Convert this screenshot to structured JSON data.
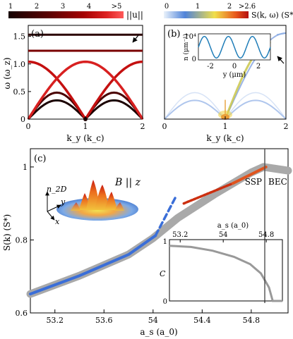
{
  "chart_data": [
    {
      "panel": "(a)",
      "type": "line",
      "colorbar": {
        "ticks": [
          "1",
          "2",
          "3",
          "4",
          ">5"
        ],
        "label": "||u||",
        "colors": [
          "#1a0000",
          "#5a0000",
          "#a00000",
          "#dc2020",
          "#ff6060"
        ]
      },
      "xlabel": "k_y (k_c)",
      "ylabel": "ω (ω_z)",
      "xlim": [
        0,
        2
      ],
      "ylim": [
        0,
        1.7
      ],
      "xticks": [
        "0",
        "1",
        "2"
      ],
      "yticks": [
        "0",
        "0.5",
        "1.0",
        "1.5"
      ],
      "series": [
        {
          "type": "dispersion",
          "x": [
            0,
            0.25,
            0.5,
            0.75,
            1.0,
            1.25,
            1.5,
            1.75,
            2.0
          ],
          "y": [
            0.0,
            0.22,
            0.34,
            0.22,
            0.0,
            0.22,
            0.34,
            0.22,
            0.0
          ]
        },
        {
          "type": "dispersion",
          "x": [
            0,
            0.25,
            0.5,
            0.75,
            1.0,
            1.25,
            1.5,
            1.75,
            2.0
          ],
          "y": [
            0.0,
            0.36,
            0.48,
            0.36,
            0.0,
            0.36,
            0.48,
            0.36,
            0.0
          ]
        },
        {
          "type": "crossing",
          "x": [
            0,
            0.5,
            1.0,
            1.5,
            2.0
          ],
          "y": [
            1.04,
            0.5,
            0.0,
            0.5,
            1.04
          ]
        },
        {
          "type": "crossing",
          "x": [
            0,
            0.5,
            1.0,
            1.5,
            2.0
          ],
          "y": [
            0.0,
            0.56,
            1.04,
            0.56,
            0.0
          ]
        },
        {
          "type": "flat",
          "x": [
            0,
            2
          ],
          "y": [
            1.24,
            1.24
          ]
        },
        {
          "type": "flat",
          "x": [
            0,
            2
          ],
          "y": [
            1.53,
            1.53
          ]
        }
      ]
    },
    {
      "panel": "(b)",
      "type": "heatmap",
      "colorbar": {
        "ticks": [
          "0",
          "1",
          "2",
          ">2.6"
        ],
        "label": "S(k, ω) (S*)",
        "colors": [
          "#e8f1fb",
          "#4a7fd6",
          "#f2e14a",
          "#e03a14"
        ]
      },
      "xlabel": "k_y (k_c)",
      "xlim": [
        0,
        2
      ],
      "xticks": [
        "0",
        "1",
        "2"
      ],
      "inset": {
        "type": "line",
        "xlabel": "y (μm)",
        "ylabel": "n (μm⁻¹)",
        "ytick_top": "10⁴",
        "ytick_bottom": "0",
        "xticks": [
          "-2",
          "0",
          "2"
        ],
        "x": [
          -3,
          -2.5,
          -2,
          -1.5,
          -1,
          -0.5,
          0,
          0.5,
          1,
          1.5,
          2,
          2.5,
          3
        ],
        "y": [
          0.5,
          0.95,
          0.5,
          0.05,
          0.5,
          0.95,
          0.5,
          0.05,
          0.5,
          0.95,
          0.5,
          0.05,
          0.5
        ]
      }
    },
    {
      "panel": "(c)",
      "type": "line",
      "xlabel": "a_s (a_0)",
      "ylabel": "S(k) (S*)",
      "xlim": [
        53.0,
        55.1
      ],
      "ylim": [
        0.6,
        1.05
      ],
      "xticks": [
        "53.2",
        "53.6",
        "54",
        "54.4",
        "54.8"
      ],
      "yticks": [
        "0.6",
        "0.8",
        "1"
      ],
      "regions": [
        "SSP",
        "BEC"
      ],
      "illustration_text": [
        "n_2D",
        "B || z",
        "y",
        "x"
      ],
      "series": [
        {
          "name": "thick gray",
          "color": "#a9a9a9",
          "x": [
            53.0,
            53.4,
            53.8,
            54.0,
            54.2,
            54.5,
            54.8,
            54.9,
            55.1
          ],
          "y": [
            0.652,
            0.702,
            0.76,
            0.805,
            0.86,
            0.925,
            0.985,
            1.0,
            0.99
          ]
        },
        {
          "name": "blue",
          "color": "#3a6ed8",
          "x": [
            53.0,
            53.4,
            53.8,
            54.02
          ],
          "y": [
            0.652,
            0.702,
            0.76,
            0.812
          ]
        },
        {
          "name": "blue dashed",
          "color": "#3a6ed8",
          "dashed": true,
          "x": [
            54.02,
            54.18
          ],
          "y": [
            0.812,
            0.915
          ]
        },
        {
          "name": "red dotted",
          "color": "#cc2f10",
          "dotted": true,
          "x": [
            54.25,
            54.65
          ],
          "y": [
            0.9,
            0.955
          ]
        },
        {
          "name": "red",
          "color": "#e0541e",
          "x": [
            54.65,
            54.92
          ],
          "y": [
            0.955,
            1.0
          ]
        }
      ],
      "inset": {
        "xlabel": "a_s (a_0)",
        "ylabel": "C",
        "xticks": [
          "53.2",
          "54",
          "54.8"
        ],
        "yticks": [
          "0",
          "1"
        ],
        "x": [
          53.0,
          53.4,
          53.8,
          54.2,
          54.5,
          54.7,
          54.85,
          54.92,
          54.95,
          55.1
        ],
        "y": [
          0.9,
          0.88,
          0.82,
          0.72,
          0.6,
          0.45,
          0.22,
          0.0,
          0.0,
          0.0
        ]
      }
    }
  ]
}
